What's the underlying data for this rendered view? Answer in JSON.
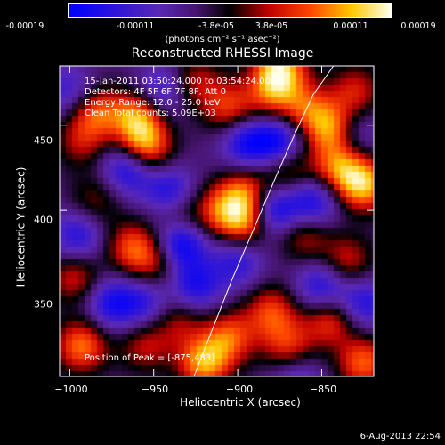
{
  "colorbar": {
    "ticks": [
      "-0.00019",
      "-0.00011",
      "-3.8e-05",
      "3.8e-05",
      "0.00011",
      "0.00019"
    ],
    "units": "(photons cm⁻² s⁻¹ asec⁻²)",
    "min": -0.00019,
    "max": 0.00019
  },
  "footer": {
    "date": "6-Aug-2013 22:54"
  },
  "chart_data": {
    "type": "heatmap",
    "title": "Reconstructed RHESSI Image",
    "xlabel": "Heliocentric X (arcsec)",
    "ylabel": "Heliocentric Y (arcsec)",
    "xlim": [
      -1006,
      -819
    ],
    "ylim": [
      302,
      485
    ],
    "xticks": [
      "−1000",
      "−950",
      "−900",
      "−850"
    ],
    "xtick_values": [
      -1000,
      -950,
      -900,
      -850
    ],
    "yticks": [
      "350",
      "400",
      "450"
    ],
    "ytick_values": [
      350,
      400,
      450
    ],
    "annotations": {
      "time": "15-Jan-2011 03:50:24.000 to 03:54:24.000",
      "detectors": "Detectors: 4F 5F 6F 7F 8F, Att 0",
      "energy": "Energy Range: 12.0 - 25.0 keV",
      "clean": "Clean     Total counts: 5.09E+03",
      "peak": "Position of Peak = [-875,483]"
    },
    "limb_curve": {
      "x": [
        -926,
        -915,
        -903,
        -890,
        -878,
        -866,
        -855,
        -843
      ],
      "y": [
        302,
        330,
        360,
        390,
        418,
        445,
        468,
        485
      ]
    },
    "sources": [
      {
        "x": -985,
        "y": 458,
        "v": 0.00013
      },
      {
        "x": -960,
        "y": 455,
        "v": 0.00016
      },
      {
        "x": -955,
        "y": 437,
        "v": 0.00017
      },
      {
        "x": -993,
        "y": 440,
        "v": 8e-05
      },
      {
        "x": -925,
        "y": 475,
        "v": 9e-05
      },
      {
        "x": -905,
        "y": 460,
        "v": 0.00012
      },
      {
        "x": -880,
        "y": 468,
        "v": 0.0001
      },
      {
        "x": -875,
        "y": 483,
        "v": 0.00019
      },
      {
        "x": -860,
        "y": 460,
        "v": 0.00011
      },
      {
        "x": -845,
        "y": 448,
        "v": 0.00016
      },
      {
        "x": -830,
        "y": 470,
        "v": 0.0001
      },
      {
        "x": -825,
        "y": 415,
        "v": 0.00018
      },
      {
        "x": -840,
        "y": 425,
        "v": 0.00014
      },
      {
        "x": -870,
        "y": 423,
        "v": 0.0001
      },
      {
        "x": -895,
        "y": 410,
        "v": 0.00013
      },
      {
        "x": -910,
        "y": 400,
        "v": 0.00011
      },
      {
        "x": -895,
        "y": 393,
        "v": 0.00015
      },
      {
        "x": -935,
        "y": 398,
        "v": 9e-05
      },
      {
        "x": -963,
        "y": 378,
        "v": 0.00012
      },
      {
        "x": -948,
        "y": 370,
        "v": 0.0001
      },
      {
        "x": -985,
        "y": 405,
        "v": 7e-05
      },
      {
        "x": -997,
        "y": 360,
        "v": 0.0001
      },
      {
        "x": -993,
        "y": 320,
        "v": 0.00015
      },
      {
        "x": -955,
        "y": 320,
        "v": 9e-05
      },
      {
        "x": -935,
        "y": 335,
        "v": 8e-05
      },
      {
        "x": -920,
        "y": 310,
        "v": 0.00017
      },
      {
        "x": -905,
        "y": 325,
        "v": 0.00013
      },
      {
        "x": -880,
        "y": 340,
        "v": 0.00012
      },
      {
        "x": -870,
        "y": 320,
        "v": 0.00011
      },
      {
        "x": -845,
        "y": 335,
        "v": 0.00012
      },
      {
        "x": -825,
        "y": 310,
        "v": 0.00014
      },
      {
        "x": -835,
        "y": 370,
        "v": 0.0001
      },
      {
        "x": -860,
        "y": 385,
        "v": 9e-05
      },
      {
        "x": -975,
        "y": 345,
        "v": -0.00012
      },
      {
        "x": -965,
        "y": 425,
        "v": -0.00014
      },
      {
        "x": -940,
        "y": 410,
        "v": -0.00013
      },
      {
        "x": -935,
        "y": 380,
        "v": -0.00017
      },
      {
        "x": -925,
        "y": 355,
        "v": -0.00012
      },
      {
        "x": -995,
        "y": 385,
        "v": -0.00011
      },
      {
        "x": -1000,
        "y": 470,
        "v": -9e-05
      },
      {
        "x": -945,
        "y": 470,
        "v": -0.0001
      },
      {
        "x": -895,
        "y": 440,
        "v": -0.00013
      },
      {
        "x": -875,
        "y": 440,
        "v": -0.00014
      },
      {
        "x": -880,
        "y": 400,
        "v": -0.00016
      },
      {
        "x": -855,
        "y": 405,
        "v": -0.00013
      },
      {
        "x": -850,
        "y": 355,
        "v": -0.00012
      },
      {
        "x": -900,
        "y": 370,
        "v": -0.0001
      },
      {
        "x": -955,
        "y": 345,
        "v": -9e-05
      },
      {
        "x": -865,
        "y": 300,
        "v": -8e-05
      },
      {
        "x": -830,
        "y": 445,
        "v": -7e-05
      },
      {
        "x": -825,
        "y": 345,
        "v": -0.00011
      }
    ]
  }
}
